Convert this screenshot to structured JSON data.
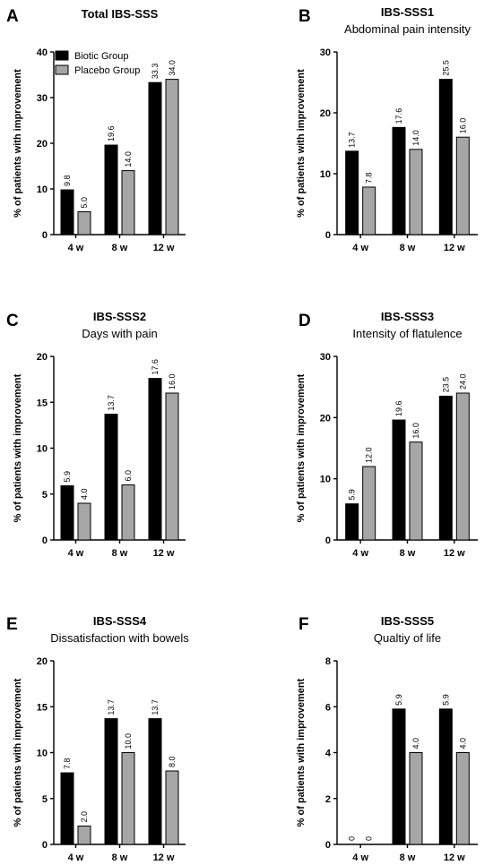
{
  "legend": [
    {
      "label": "Biotic Group",
      "color": "#000000"
    },
    {
      "label": "Placebo Group",
      "color": "#a6a6a6"
    }
  ],
  "chart_data": [
    {
      "type": "bar",
      "panel": "A",
      "title": "Total IBS-SSS",
      "subtitle": "",
      "ylabel": "% of patients with improvement",
      "ylim": [
        0,
        40
      ],
      "yticks": [
        0,
        10,
        20,
        30,
        40
      ],
      "categories": [
        "4 w",
        "8 w",
        "12 w"
      ],
      "series": [
        {
          "name": "Biotic Group",
          "color": "#000000",
          "values": [
            9.8,
            19.6,
            33.3
          ],
          "labels": [
            "9.8",
            "19.6",
            "33.3"
          ]
        },
        {
          "name": "Placebo Group",
          "color": "#a6a6a6",
          "values": [
            5.0,
            14.0,
            34.0
          ],
          "labels": [
            "5.0",
            "14.0",
            "34.0"
          ]
        }
      ]
    },
    {
      "type": "bar",
      "panel": "B",
      "title": "IBS-SSS1",
      "subtitle": "Abdominal pain intensity",
      "ylabel": "% of patients with improvement",
      "ylim": [
        0,
        30
      ],
      "yticks": [
        0,
        10,
        20,
        30
      ],
      "categories": [
        "4 w",
        "8 w",
        "12 w"
      ],
      "series": [
        {
          "name": "Biotic Group",
          "color": "#000000",
          "values": [
            13.7,
            17.6,
            25.5
          ],
          "labels": [
            "13.7",
            "17.6",
            "25.5"
          ]
        },
        {
          "name": "Placebo Group",
          "color": "#a6a6a6",
          "values": [
            7.8,
            14.0,
            16.0
          ],
          "labels": [
            "7.8",
            "14.0",
            "16.0"
          ]
        }
      ]
    },
    {
      "type": "bar",
      "panel": "C",
      "title": "IBS-SSS2",
      "subtitle": "Days with pain",
      "ylabel": "% of patients with improvement",
      "ylim": [
        0,
        20
      ],
      "yticks": [
        0,
        5,
        10,
        15,
        20
      ],
      "categories": [
        "4 w",
        "8 w",
        "12 w"
      ],
      "series": [
        {
          "name": "Biotic Group",
          "color": "#000000",
          "values": [
            5.9,
            13.7,
            17.6
          ],
          "labels": [
            "5.9",
            "13.7",
            "17.6"
          ]
        },
        {
          "name": "Placebo Group",
          "color": "#a6a6a6",
          "values": [
            4.0,
            6.0,
            16.0
          ],
          "labels": [
            "4.0",
            "6.0",
            "16.0"
          ]
        }
      ]
    },
    {
      "type": "bar",
      "panel": "D",
      "title": "IBS-SSS3",
      "subtitle": "Intensity of flatulence",
      "ylabel": "% of patients with improvement",
      "ylim": [
        0,
        30
      ],
      "yticks": [
        0,
        10,
        20,
        30
      ],
      "categories": [
        "4 w",
        "8 w",
        "12 w"
      ],
      "series": [
        {
          "name": "Biotic Group",
          "color": "#000000",
          "values": [
            5.9,
            19.6,
            23.5
          ],
          "labels": [
            "5.9",
            "19.6",
            "23.5"
          ]
        },
        {
          "name": "Placebo Group",
          "color": "#a6a6a6",
          "values": [
            12.0,
            16.0,
            24.0
          ],
          "labels": [
            "12.0",
            "16.0",
            "24.0"
          ]
        }
      ]
    },
    {
      "type": "bar",
      "panel": "E",
      "title": "IBS-SSS4",
      "subtitle": "Dissatisfaction with bowels",
      "ylabel": "% of patients with improvement",
      "ylim": [
        0,
        20
      ],
      "yticks": [
        0,
        5,
        10,
        15,
        20
      ],
      "categories": [
        "4 w",
        "8 w",
        "12 w"
      ],
      "series": [
        {
          "name": "Biotic Group",
          "color": "#000000",
          "values": [
            7.8,
            13.7,
            13.7
          ],
          "labels": [
            "7.8",
            "13.7",
            "13.7"
          ]
        },
        {
          "name": "Placebo Group",
          "color": "#a6a6a6",
          "values": [
            2.0,
            10.0,
            8.0
          ],
          "labels": [
            "2.0",
            "10.0",
            "8.0"
          ]
        }
      ]
    },
    {
      "type": "bar",
      "panel": "F",
      "title": "IBS-SSS5",
      "subtitle": "Qualtiy of life",
      "ylabel": "% of patients with improvement",
      "ylim": [
        0,
        8
      ],
      "yticks": [
        0,
        2,
        4,
        6,
        8
      ],
      "categories": [
        "4 w",
        "8 w",
        "12 w"
      ],
      "series": [
        {
          "name": "Biotic Group",
          "color": "#000000",
          "values": [
            0,
            5.9,
            5.9
          ],
          "labels": [
            "0",
            "5.9",
            "5.9"
          ]
        },
        {
          "name": "Placebo Group",
          "color": "#a6a6a6",
          "values": [
            0,
            4.0,
            4.0
          ],
          "labels": [
            "0",
            "4.0",
            "4.0"
          ]
        }
      ]
    }
  ]
}
